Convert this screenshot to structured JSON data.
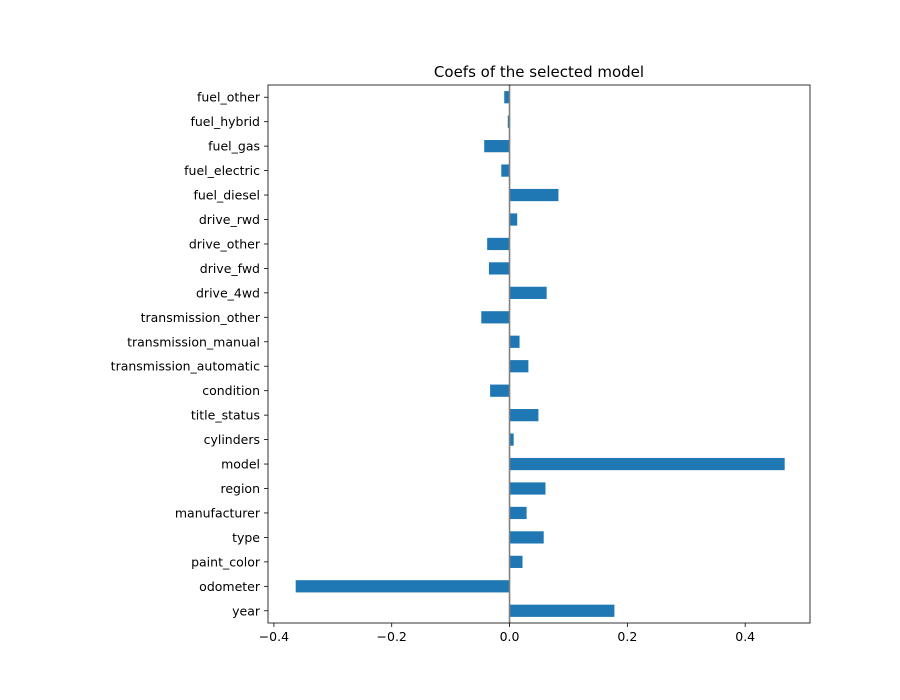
{
  "chart_data": {
    "type": "bar",
    "orientation": "horizontal",
    "title": "Coefs of the selected model",
    "xlabel": "",
    "ylabel": "",
    "xlim": [
      -0.41,
      0.51
    ],
    "xticks": [
      -0.4,
      -0.2,
      0.0,
      0.2,
      0.4
    ],
    "xtick_labels": [
      "−0.4",
      "−0.2",
      "0.0",
      "0.2",
      "0.4"
    ],
    "grid": false,
    "legend": "none",
    "zero_line": true,
    "colors": {
      "bar": "#1f77b4",
      "zero_line": "#808080",
      "axes": "#000000"
    },
    "categories": [
      "fuel_other",
      "fuel_hybrid",
      "fuel_gas",
      "fuel_electric",
      "fuel_diesel",
      "drive_rwd",
      "drive_other",
      "drive_fwd",
      "drive_4wd",
      "transmission_other",
      "transmission_manual",
      "transmission_automatic",
      "condition",
      "title_status",
      "cylinders",
      "model",
      "region",
      "manufacturer",
      "type",
      "paint_color",
      "odometer",
      "year"
    ],
    "values": [
      -0.009,
      -0.003,
      -0.043,
      -0.014,
      0.083,
      0.013,
      -0.038,
      -0.035,
      0.063,
      -0.048,
      0.017,
      0.032,
      -0.033,
      0.049,
      0.007,
      0.467,
      0.061,
      0.029,
      0.058,
      0.022,
      -0.363,
      0.178
    ]
  }
}
